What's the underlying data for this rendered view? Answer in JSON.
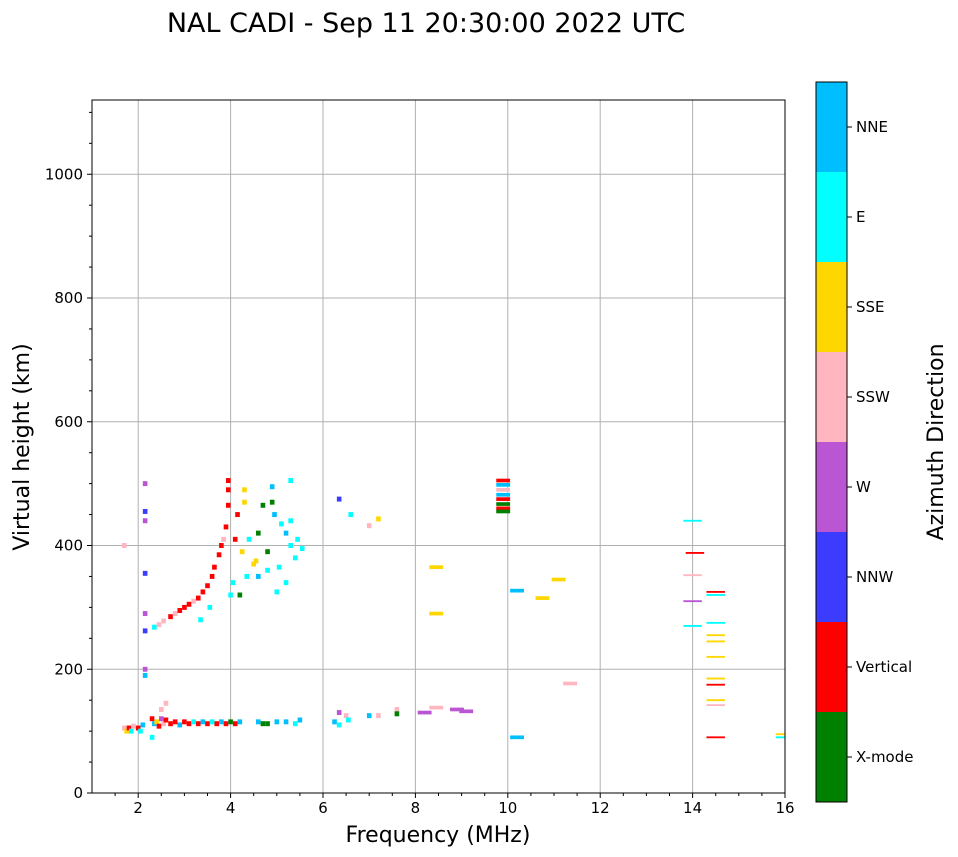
{
  "chart_data": {
    "type": "scatter",
    "title": "NAL CADI - Sep 11 20:30:00 2022 UTC",
    "xlabel": "Frequency (MHz)",
    "ylabel": "Virtual height (km)",
    "xlim": [
      1,
      16
    ],
    "ylim": [
      0,
      1120
    ],
    "xticks": [
      "2",
      "4",
      "6",
      "8",
      "10",
      "12",
      "14",
      "16"
    ],
    "yticks": [
      "0",
      "200",
      "400",
      "600",
      "800",
      "1000"
    ],
    "grid": true,
    "colorbar": {
      "label": "Azimuth Direction",
      "categories": [
        "X-mode",
        "Vertical",
        "NNW",
        "W",
        "SSW",
        "SSE",
        "E",
        "NNE"
      ],
      "colors": [
        "#008000",
        "#ff0000",
        "#3c3cff",
        "#ba55d3",
        "#ffb6c1",
        "#ffd700",
        "#00ffff",
        "#00bfff"
      ]
    },
    "points_format": [
      "frequency_mhz",
      "height_km",
      "category_index"
    ],
    "points": [
      [
        1.7,
        105,
        4
      ],
      [
        1.75,
        100,
        5
      ],
      [
        1.8,
        105,
        1
      ],
      [
        1.85,
        100,
        6
      ],
      [
        1.9,
        108,
        4
      ],
      [
        2.0,
        105,
        1
      ],
      [
        2.05,
        100,
        6
      ],
      [
        2.1,
        110,
        7
      ],
      [
        2.3,
        120,
        1
      ],
      [
        2.35,
        112,
        7
      ],
      [
        2.4,
        115,
        5
      ],
      [
        2.45,
        108,
        1
      ],
      [
        2.5,
        120,
        3
      ],
      [
        2.55,
        112,
        4
      ],
      [
        2.6,
        118,
        1
      ],
      [
        2.7,
        112,
        1
      ],
      [
        2.8,
        115,
        1
      ],
      [
        2.9,
        110,
        7
      ],
      [
        3.0,
        115,
        1
      ],
      [
        3.1,
        112,
        1
      ],
      [
        3.2,
        115,
        6
      ],
      [
        3.3,
        112,
        1
      ],
      [
        3.4,
        115,
        7
      ],
      [
        3.5,
        112,
        1
      ],
      [
        3.6,
        115,
        6
      ],
      [
        3.7,
        112,
        1
      ],
      [
        3.8,
        115,
        7
      ],
      [
        3.9,
        112,
        1
      ],
      [
        4.0,
        115,
        0
      ],
      [
        4.1,
        112,
        1
      ],
      [
        4.2,
        115,
        7
      ],
      [
        4.6,
        115,
        7
      ],
      [
        4.7,
        112,
        0
      ],
      [
        4.8,
        112,
        0
      ],
      [
        5.0,
        115,
        7
      ],
      [
        5.2,
        115,
        7
      ],
      [
        5.4,
        112,
        6
      ],
      [
        5.5,
        118,
        7
      ],
      [
        6.25,
        115,
        7
      ],
      [
        6.35,
        110,
        6
      ],
      [
        6.35,
        130,
        3
      ],
      [
        6.5,
        125,
        4
      ],
      [
        6.55,
        118,
        6
      ],
      [
        7.0,
        125,
        7
      ],
      [
        7.2,
        125,
        4
      ],
      [
        7.6,
        135,
        4
      ],
      [
        7.6,
        128,
        0
      ],
      [
        8.2,
        130,
        3
      ],
      [
        8.45,
        138,
        4
      ],
      [
        8.9,
        135,
        3
      ],
      [
        9.1,
        132,
        3
      ],
      [
        10.2,
        90,
        7
      ],
      [
        2.15,
        190,
        7
      ],
      [
        2.15,
        200,
        3
      ],
      [
        2.3,
        90,
        6
      ],
      [
        2.5,
        135,
        4
      ],
      [
        2.6,
        145,
        4
      ],
      [
        2.15,
        500,
        3
      ],
      [
        2.15,
        455,
        2
      ],
      [
        2.15,
        440,
        3
      ],
      [
        2.15,
        355,
        2
      ],
      [
        2.15,
        290,
        3
      ],
      [
        2.15,
        262,
        2
      ],
      [
        1.7,
        400,
        4
      ],
      [
        2.35,
        268,
        6
      ],
      [
        2.45,
        272,
        4
      ],
      [
        2.55,
        278,
        4
      ],
      [
        2.7,
        285,
        1
      ],
      [
        2.8,
        290,
        4
      ],
      [
        2.9,
        295,
        1
      ],
      [
        3.0,
        300,
        1
      ],
      [
        3.1,
        305,
        1
      ],
      [
        3.2,
        310,
        4
      ],
      [
        3.3,
        315,
        1
      ],
      [
        3.35,
        280,
        6
      ],
      [
        3.4,
        325,
        1
      ],
      [
        3.5,
        335,
        1
      ],
      [
        3.55,
        300,
        6
      ],
      [
        3.6,
        350,
        1
      ],
      [
        3.65,
        365,
        1
      ],
      [
        3.75,
        385,
        1
      ],
      [
        3.8,
        400,
        1
      ],
      [
        3.85,
        410,
        4
      ],
      [
        3.9,
        430,
        1
      ],
      [
        3.95,
        465,
        1
      ],
      [
        3.95,
        490,
        1
      ],
      [
        3.95,
        505,
        1
      ],
      [
        4.0,
        320,
        6
      ],
      [
        4.05,
        340,
        6
      ],
      [
        4.1,
        410,
        1
      ],
      [
        4.15,
        450,
        1
      ],
      [
        4.2,
        320,
        0
      ],
      [
        4.3,
        490,
        5
      ],
      [
        4.3,
        470,
        5
      ],
      [
        4.35,
        350,
        6
      ],
      [
        4.5,
        370,
        5
      ],
      [
        4.7,
        465,
        0
      ],
      [
        4.8,
        390,
        0
      ],
      [
        4.8,
        360,
        6
      ],
      [
        4.9,
        495,
        7
      ],
      [
        4.9,
        470,
        0
      ],
      [
        4.95,
        450,
        7
      ],
      [
        5.0,
        325,
        6
      ],
      [
        5.05,
        365,
        6
      ],
      [
        5.1,
        435,
        6
      ],
      [
        5.2,
        340,
        6
      ],
      [
        5.2,
        420,
        7
      ],
      [
        5.3,
        505,
        6
      ],
      [
        5.3,
        400,
        6
      ],
      [
        5.4,
        380,
        6
      ],
      [
        5.45,
        410,
        6
      ],
      [
        5.55,
        395,
        6
      ],
      [
        5.3,
        440,
        6
      ],
      [
        4.4,
        410,
        6
      ],
      [
        4.6,
        420,
        0
      ],
      [
        4.55,
        375,
        5
      ],
      [
        4.25,
        390,
        5
      ],
      [
        4.6,
        350,
        7
      ],
      [
        6.35,
        475,
        2
      ],
      [
        6.6,
        450,
        6
      ],
      [
        7.0,
        432,
        4
      ],
      [
        7.2,
        443,
        5
      ],
      [
        8.45,
        365,
        5
      ],
      [
        8.45,
        290,
        5
      ],
      [
        9.9,
        505,
        1
      ],
      [
        9.9,
        498,
        7
      ],
      [
        9.9,
        490,
        4
      ],
      [
        9.9,
        482,
        7
      ],
      [
        9.9,
        475,
        1
      ],
      [
        9.9,
        467,
        0
      ],
      [
        9.9,
        460,
        1
      ],
      [
        9.9,
        455,
        0
      ],
      [
        10.2,
        327,
        7
      ],
      [
        10.75,
        315,
        5
      ],
      [
        11.1,
        345,
        5
      ],
      [
        11.35,
        177,
        4
      ],
      [
        14.0,
        440,
        6
      ],
      [
        14.05,
        388,
        1
      ],
      [
        14.0,
        352,
        4
      ],
      [
        14.0,
        310,
        3
      ],
      [
        14.0,
        270,
        6
      ],
      [
        14.5,
        325,
        1
      ],
      [
        14.5,
        320,
        6
      ],
      [
        14.5,
        275,
        6
      ],
      [
        14.5,
        255,
        5
      ],
      [
        14.5,
        245,
        5
      ],
      [
        14.5,
        220,
        5
      ],
      [
        14.5,
        185,
        5
      ],
      [
        14.5,
        175,
        1
      ],
      [
        14.5,
        150,
        5
      ],
      [
        14.5,
        142,
        4
      ],
      [
        14.5,
        90,
        1
      ],
      [
        16.0,
        95,
        5
      ],
      [
        16.0,
        90,
        6
      ]
    ]
  }
}
